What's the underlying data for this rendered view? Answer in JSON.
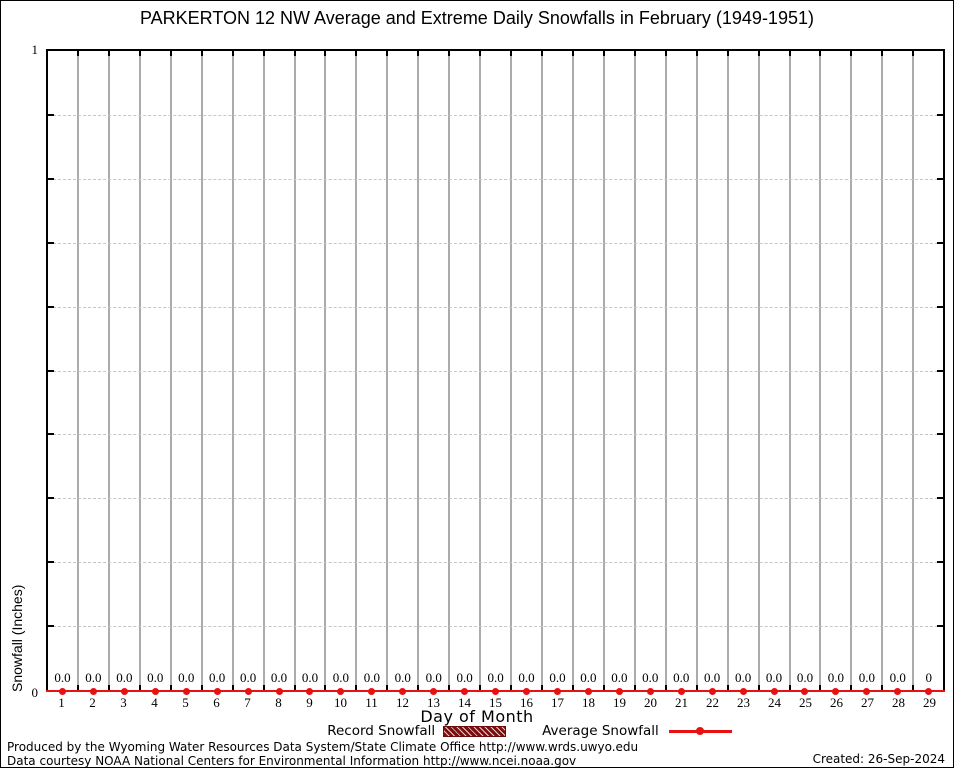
{
  "title": "PARKERTON 12 NW Average and Extreme Daily Snowfalls in February (1949-1951)",
  "chart_data": {
    "type": "bar",
    "title": "PARKERTON 12 NW Average and Extreme Daily Snowfalls in February (1949-1951)",
    "xlabel": "Day of Month",
    "ylabel": "Snowfall (Inches)",
    "ylim": [
      0,
      1
    ],
    "y_gridline_step": 0.1,
    "ytick_labels": [
      "0",
      "1"
    ],
    "grid": {
      "vertical_solid_at_day_boundaries": true,
      "horizontal_dashed": true
    },
    "legend_position": "bottom-center",
    "categories": [
      1,
      2,
      3,
      4,
      5,
      6,
      7,
      8,
      9,
      10,
      11,
      12,
      13,
      14,
      15,
      16,
      17,
      18,
      19,
      20,
      21,
      22,
      23,
      24,
      25,
      26,
      27,
      28,
      29
    ],
    "series": [
      {
        "name": "Record Snowfall",
        "style": "hatched-bar",
        "color": "#7b0e0e",
        "values": [
          0,
          0,
          0,
          0,
          0,
          0,
          0,
          0,
          0,
          0,
          0,
          0,
          0,
          0,
          0,
          0,
          0,
          0,
          0,
          0,
          0,
          0,
          0,
          0,
          0,
          0,
          0,
          0,
          0
        ]
      },
      {
        "name": "Average Snowfall",
        "style": "line-with-markers",
        "color": "#e81111",
        "values": [
          0,
          0,
          0,
          0,
          0,
          0,
          0,
          0,
          0,
          0,
          0,
          0,
          0,
          0,
          0,
          0,
          0,
          0,
          0,
          0,
          0,
          0,
          0,
          0,
          0,
          0,
          0,
          0,
          0
        ]
      }
    ],
    "point_value_labels": [
      "0.0",
      "0.0",
      "0.0",
      "0.0",
      "0.0",
      "0.0",
      "0.0",
      "0.0",
      "0.0",
      "0.0",
      "0.0",
      "0.0",
      "0.0",
      "0.0",
      "0.0",
      "0.0",
      "0.0",
      "0.0",
      "0.0",
      "0.0",
      "0.0",
      "0.0",
      "0.0",
      "0.0",
      "0.0",
      "0.0",
      "0.0",
      "0.0",
      "0"
    ]
  },
  "colors": {
    "average_red": "#e81111",
    "record_dark_red": "#7b0e0e",
    "vertical_grid": "#ababab",
    "horizontal_grid": "#c6c6c6"
  },
  "footer": {
    "line1": "Produced by the Wyoming Water Resources Data System/State Climate Office http://www.wrds.uwyo.edu",
    "line2": "Data courtesy NOAA National Centers for Environmental Information http://www.ncei.noaa.gov",
    "created": "Created: 26-Sep-2024"
  }
}
